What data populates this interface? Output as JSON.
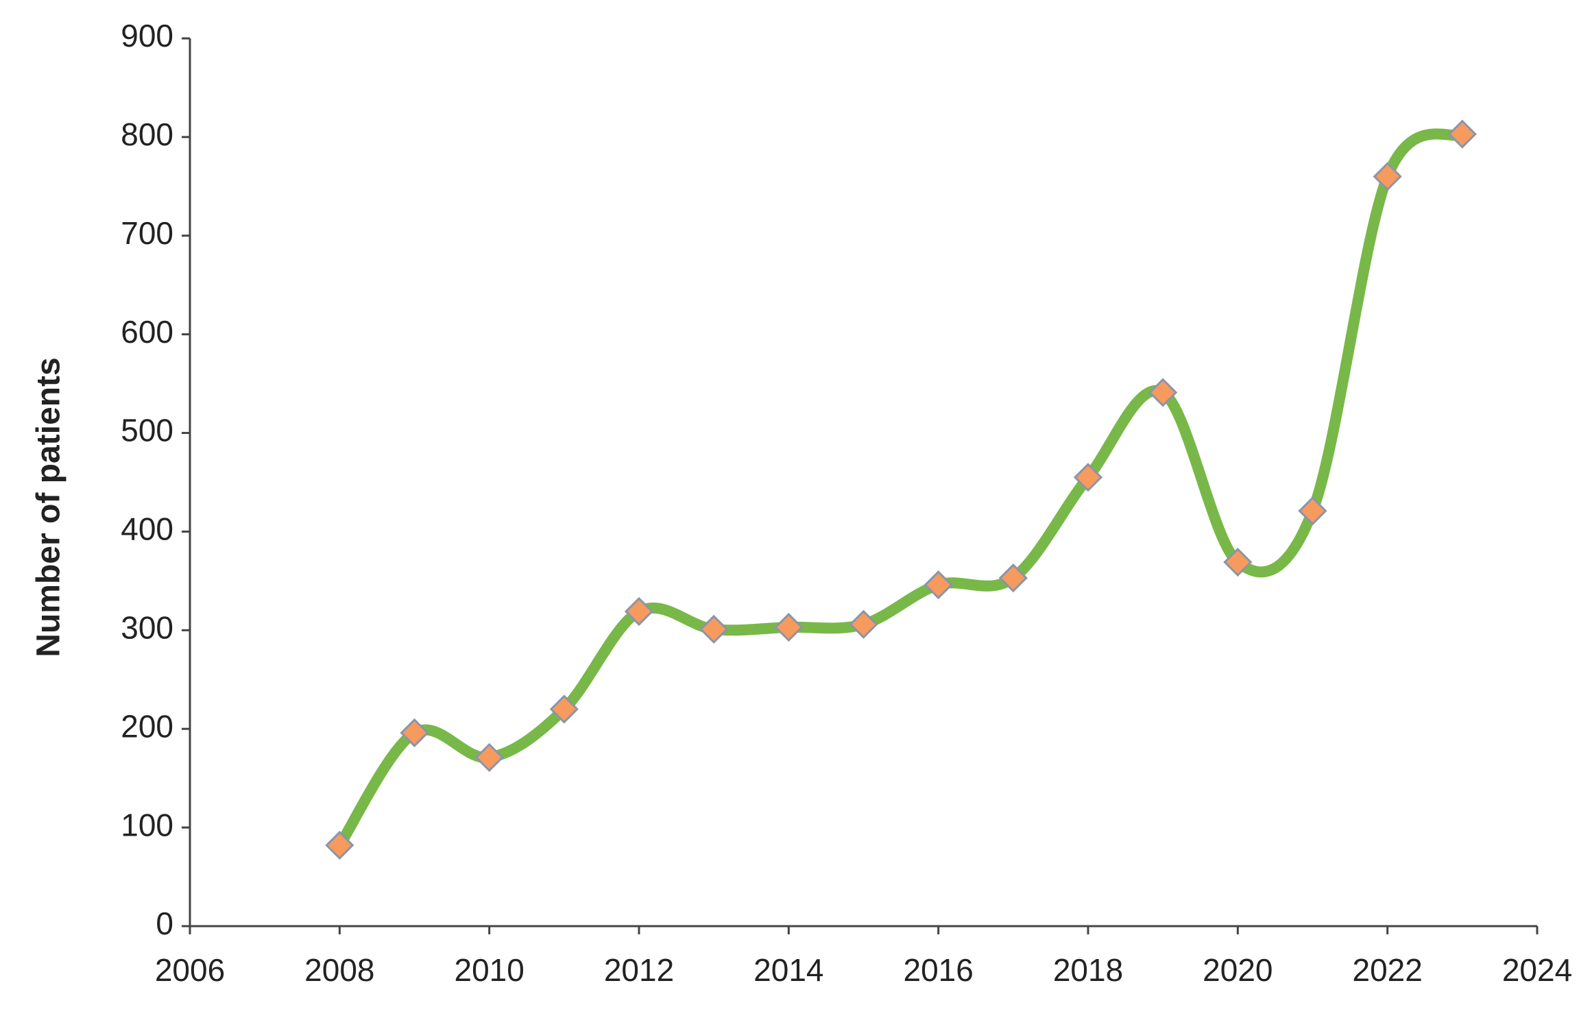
{
  "chart_data": {
    "type": "line",
    "y_label": "Number of  patients",
    "x": [
      2008,
      2009,
      2010,
      2011,
      2012,
      2013,
      2014,
      2015,
      2016,
      2017,
      2018,
      2019,
      2020,
      2021,
      2022,
      2023
    ],
    "series": [
      {
        "color": "#78b848",
        "marker_color": "#f79a5e",
        "values": [
          82,
          196,
          171,
          220,
          319,
          301,
          303,
          306,
          346,
          353,
          455,
          541,
          369,
          421,
          760,
          803
        ]
      }
    ],
    "xlim": [
      2006,
      2024
    ],
    "xticks": [
      2006,
      2008,
      2010,
      2012,
      2014,
      2016,
      2018,
      2020,
      2022,
      2024
    ],
    "ylim": [
      0,
      900
    ],
    "yticks": [
      0,
      100,
      200,
      300,
      400,
      500,
      600,
      700,
      800,
      900
    ],
    "grid": false,
    "smooth": true
  }
}
